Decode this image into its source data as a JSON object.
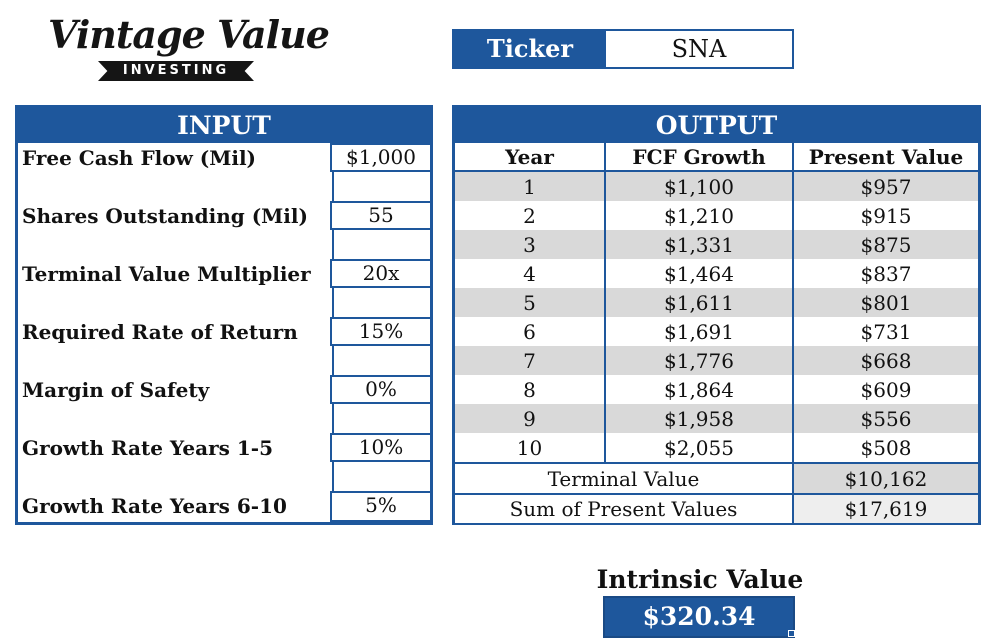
{
  "logo": {
    "script_text": "Vintage Value",
    "ribbon_text": "INVESTING"
  },
  "ticker": {
    "label": "Ticker",
    "value": "SNA"
  },
  "input": {
    "title": "INPUT",
    "rows": [
      {
        "label": "Free Cash Flow (Mil)",
        "value": "$1,000"
      },
      {
        "label": "Shares Outstanding (Mil)",
        "value": "55"
      },
      {
        "label": "Terminal Value Multiplier",
        "value": "20x"
      },
      {
        "label": "Required Rate of Return",
        "value": "15%"
      },
      {
        "label": "Margin of Safety",
        "value": "0%"
      },
      {
        "label": "Growth Rate Years 1-5",
        "value": "10%"
      },
      {
        "label": "Growth Rate Years 6-10",
        "value": "5%"
      }
    ]
  },
  "output": {
    "title": "OUTPUT",
    "headers": {
      "year": "Year",
      "fcf": "FCF Growth",
      "pv": "Present Value"
    },
    "rows": [
      {
        "year": "1",
        "fcf": "$1,100",
        "pv": "$957"
      },
      {
        "year": "2",
        "fcf": "$1,210",
        "pv": "$915"
      },
      {
        "year": "3",
        "fcf": "$1,331",
        "pv": "$875"
      },
      {
        "year": "4",
        "fcf": "$1,464",
        "pv": "$837"
      },
      {
        "year": "5",
        "fcf": "$1,611",
        "pv": "$801"
      },
      {
        "year": "6",
        "fcf": "$1,691",
        "pv": "$731"
      },
      {
        "year": "7",
        "fcf": "$1,776",
        "pv": "$668"
      },
      {
        "year": "8",
        "fcf": "$1,864",
        "pv": "$609"
      },
      {
        "year": "9",
        "fcf": "$1,958",
        "pv": "$556"
      },
      {
        "year": "10",
        "fcf": "$2,055",
        "pv": "$508"
      }
    ],
    "terminal_value": {
      "label": "Terminal Value",
      "value": "$10,162"
    },
    "sum_pv": {
      "label": "Sum of Present Values",
      "value": "$17,619"
    }
  },
  "intrinsic": {
    "label": "Intrinsic Value",
    "value": "$320.34"
  },
  "colors": {
    "accent": "#1e579c",
    "shade": "#d9d9d9"
  }
}
